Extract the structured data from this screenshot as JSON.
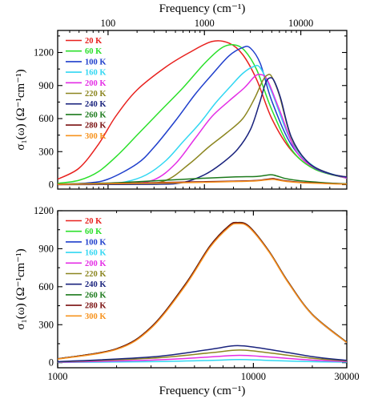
{
  "chart_data": [
    {
      "type": "line",
      "panel": "top",
      "xscale": "log",
      "xlim": [
        30,
        30000
      ],
      "ylim": [
        -40,
        1400
      ],
      "xaxis_position": "top",
      "xlabel_top": "Frequency (cm⁻¹)",
      "ylabel": "σ₁(ω)  (Ω⁻¹cm⁻¹)",
      "xticks": [
        100,
        1000,
        10000
      ],
      "xtick_labels": [
        "100",
        "1000",
        "10000"
      ],
      "yticks": [
        0,
        300,
        600,
        900,
        1200
      ],
      "ytick_labels": [
        "0",
        "300",
        "600",
        "900",
        "1200"
      ],
      "legend_position": "top-left",
      "series": [
        {
          "name": "20 K",
          "color": "#e8211e",
          "points": [
            [
              30,
              50
            ],
            [
              50,
              150
            ],
            [
              80,
              370
            ],
            [
              120,
              620
            ],
            [
              200,
              860
            ],
            [
              400,
              1070
            ],
            [
              700,
              1200
            ],
            [
              1200,
              1300
            ],
            [
              1800,
              1285
            ],
            [
              2500,
              1180
            ],
            [
              3500,
              950
            ],
            [
              5000,
              600
            ],
            [
              8000,
              310
            ],
            [
              14000,
              140
            ],
            [
              30000,
              60
            ]
          ]
        },
        {
          "name": "60 K",
          "color": "#2be02b",
          "points": [
            [
              30,
              12
            ],
            [
              50,
              40
            ],
            [
              80,
              120
            ],
            [
              130,
              280
            ],
            [
              200,
              450
            ],
            [
              350,
              670
            ],
            [
              600,
              880
            ],
            [
              1000,
              1100
            ],
            [
              1500,
              1240
            ],
            [
              2000,
              1270
            ],
            [
              2600,
              1220
            ],
            [
              3500,
              1040
            ],
            [
              5000,
              680
            ],
            [
              8000,
              320
            ],
            [
              14000,
              140
            ],
            [
              30000,
              60
            ]
          ]
        },
        {
          "name": "100 K",
          "color": "#1f3fcc",
          "points": [
            [
              30,
              4
            ],
            [
              60,
              15
            ],
            [
              100,
              50
            ],
            [
              200,
              190
            ],
            [
              300,
              340
            ],
            [
              500,
              580
            ],
            [
              800,
              820
            ],
            [
              1200,
              1000
            ],
            [
              1800,
              1170
            ],
            [
              2500,
              1245
            ],
            [
              3000,
              1240
            ],
            [
              3800,
              1100
            ],
            [
              5000,
              760
            ],
            [
              8000,
              360
            ],
            [
              14000,
              150
            ],
            [
              30000,
              60
            ]
          ]
        },
        {
          "name": "160 K",
          "color": "#31d7f2",
          "points": [
            [
              30,
              2
            ],
            [
              80,
              6
            ],
            [
              150,
              25
            ],
            [
              250,
              90
            ],
            [
              400,
              220
            ],
            [
              600,
              390
            ],
            [
              900,
              560
            ],
            [
              1300,
              740
            ],
            [
              1900,
              900
            ],
            [
              2500,
              1010
            ],
            [
              3200,
              1070
            ],
            [
              3800,
              1060
            ],
            [
              5000,
              840
            ],
            [
              8000,
              390
            ],
            [
              14000,
              160
            ],
            [
              30000,
              60
            ]
          ]
        },
        {
          "name": "200 K",
          "color": "#e42ee6",
          "points": [
            [
              30,
              1
            ],
            [
              150,
              8
            ],
            [
              300,
              45
            ],
            [
              500,
              190
            ],
            [
              800,
              420
            ],
            [
              1200,
              620
            ],
            [
              1800,
              760
            ],
            [
              2600,
              880
            ],
            [
              3300,
              980
            ],
            [
              3800,
              1000
            ],
            [
              4500,
              950
            ],
            [
              6000,
              680
            ],
            [
              9000,
              300
            ],
            [
              15000,
              140
            ],
            [
              30000,
              60
            ]
          ]
        },
        {
          "name": "220 K",
          "color": "#8c8620",
          "points": [
            [
              30,
              1
            ],
            [
              200,
              6
            ],
            [
              400,
              40
            ],
            [
              700,
              190
            ],
            [
              1100,
              340
            ],
            [
              1700,
              470
            ],
            [
              2500,
              600
            ],
            [
              3300,
              780
            ],
            [
              4000,
              940
            ],
            [
              4500,
              995
            ],
            [
              5000,
              980
            ],
            [
              6000,
              810
            ],
            [
              8000,
              420
            ],
            [
              12000,
              200
            ],
            [
              20000,
              100
            ],
            [
              30000,
              70
            ]
          ]
        },
        {
          "name": "240 K",
          "color": "#1a237e",
          "points": [
            [
              30,
              1
            ],
            [
              300,
              4
            ],
            [
              600,
              20
            ],
            [
              1000,
              90
            ],
            [
              1500,
              190
            ],
            [
              2200,
              320
            ],
            [
              3000,
              500
            ],
            [
              3700,
              730
            ],
            [
              4300,
              920
            ],
            [
              4800,
              970
            ],
            [
              5300,
              940
            ],
            [
              6200,
              780
            ],
            [
              8000,
              430
            ],
            [
              12000,
              200
            ],
            [
              20000,
              100
            ],
            [
              30000,
              70
            ]
          ]
        },
        {
          "name": "260 K",
          "color": "#1c7a1c",
          "points": [
            [
              30,
              5
            ],
            [
              100,
              15
            ],
            [
              300,
              35
            ],
            [
              800,
              55
            ],
            [
              2000,
              70
            ],
            [
              3500,
              75
            ],
            [
              4800,
              90
            ],
            [
              5500,
              82
            ],
            [
              7000,
              55
            ],
            [
              10000,
              35
            ],
            [
              20000,
              15
            ],
            [
              30000,
              8
            ]
          ]
        },
        {
          "name": "280 K",
          "color": "#7a1010",
          "points": [
            [
              30,
              4
            ],
            [
              100,
              10
            ],
            [
              300,
              18
            ],
            [
              800,
              25
            ],
            [
              2000,
              32
            ],
            [
              3500,
              38
            ],
            [
              5000,
              55
            ],
            [
              5600,
              50
            ],
            [
              7000,
              35
            ],
            [
              10000,
              22
            ],
            [
              20000,
              10
            ],
            [
              30000,
              6
            ]
          ]
        },
        {
          "name": "300 K",
          "color": "#f7931e",
          "points": [
            [
              30,
              3
            ],
            [
              100,
              8
            ],
            [
              300,
              14
            ],
            [
              800,
              20
            ],
            [
              2000,
              28
            ],
            [
              3500,
              35
            ],
            [
              5000,
              48
            ],
            [
              5600,
              44
            ],
            [
              7000,
              30
            ],
            [
              10000,
              18
            ],
            [
              20000,
              8
            ],
            [
              30000,
              5
            ]
          ]
        }
      ]
    },
    {
      "type": "line",
      "panel": "bottom",
      "xscale": "log",
      "xlim": [
        1000,
        30000
      ],
      "ylim": [
        -40,
        1200
      ],
      "xlabel": "Frequency (cm⁻¹)",
      "ylabel": "σ₁(ω)  (Ω⁻¹cm⁻¹)",
      "xticks": [
        1000,
        10000,
        30000
      ],
      "xtick_labels": [
        "1000",
        "10000",
        "30000"
      ],
      "yticks": [
        0,
        300,
        600,
        900,
        1200
      ],
      "ytick_labels": [
        "0",
        "300",
        "600",
        "900",
        "1200"
      ],
      "legend_position": "top-left",
      "series": [
        {
          "name": "20 K",
          "color": "#e8211e",
          "points": [
            [
              1000,
              30
            ],
            [
              2000,
              110
            ],
            [
              3000,
              280
            ],
            [
              4500,
              620
            ],
            [
              6000,
              920
            ],
            [
              7500,
              1080
            ],
            [
              8300,
              1105
            ],
            [
              9500,
              1075
            ],
            [
              12000,
              880
            ],
            [
              15000,
              640
            ],
            [
              20000,
              380
            ],
            [
              30000,
              160
            ]
          ]
        },
        {
          "name": "60 K",
          "color": "#2be02b",
          "points": [
            [
              1000,
              30
            ],
            [
              2000,
              110
            ],
            [
              3000,
              280
            ],
            [
              4500,
              620
            ],
            [
              6000,
              920
            ],
            [
              7500,
              1080
            ],
            [
              8300,
              1105
            ],
            [
              9500,
              1075
            ],
            [
              12000,
              880
            ],
            [
              15000,
              640
            ],
            [
              20000,
              380
            ],
            [
              30000,
              160
            ]
          ]
        },
        {
          "name": "100 K",
          "color": "#1f3fcc",
          "points": [
            [
              1000,
              30
            ],
            [
              2000,
              108
            ],
            [
              3000,
              278
            ],
            [
              4500,
              618
            ],
            [
              6000,
              918
            ],
            [
              7500,
              1078
            ],
            [
              8300,
              1103
            ],
            [
              9500,
              1073
            ],
            [
              12000,
              878
            ],
            [
              15000,
              638
            ],
            [
              20000,
              378
            ],
            [
              30000,
              158
            ]
          ]
        },
        {
          "name": "160 K",
          "color": "#31d7f2",
          "points": [
            [
              1000,
              2
            ],
            [
              3000,
              8
            ],
            [
              6000,
              18
            ],
            [
              8500,
              25
            ],
            [
              12000,
              18
            ],
            [
              20000,
              8
            ],
            [
              30000,
              4
            ]
          ]
        },
        {
          "name": "200 K",
          "color": "#e42ee6",
          "points": [
            [
              1000,
              4
            ],
            [
              3000,
              20
            ],
            [
              6000,
              45
            ],
            [
              8500,
              58
            ],
            [
              12000,
              45
            ],
            [
              20000,
              20
            ],
            [
              30000,
              9
            ]
          ]
        },
        {
          "name": "220 K",
          "color": "#8c8620",
          "points": [
            [
              1000,
              6
            ],
            [
              3000,
              35
            ],
            [
              6000,
              78
            ],
            [
              8500,
              100
            ],
            [
              12000,
              78
            ],
            [
              20000,
              35
            ],
            [
              30000,
              14
            ]
          ]
        },
        {
          "name": "240 K",
          "color": "#1a237e",
          "points": [
            [
              1000,
              8
            ],
            [
              3000,
              45
            ],
            [
              6000,
              105
            ],
            [
              8300,
              135
            ],
            [
              12000,
              105
            ],
            [
              20000,
              48
            ],
            [
              30000,
              18
            ]
          ]
        },
        {
          "name": "260 K",
          "color": "#1c7a1c",
          "points": [
            [
              1000,
              30
            ],
            [
              2000,
              110
            ],
            [
              3000,
              280
            ],
            [
              4500,
              622
            ],
            [
              6000,
              922
            ],
            [
              7500,
              1082
            ],
            [
              8300,
              1107
            ],
            [
              9500,
              1077
            ],
            [
              12000,
              882
            ],
            [
              15000,
              642
            ],
            [
              20000,
              382
            ],
            [
              30000,
              162
            ]
          ]
        },
        {
          "name": "280 K",
          "color": "#7a1010",
          "points": [
            [
              1000,
              30
            ],
            [
              2000,
              110
            ],
            [
              3000,
              280
            ],
            [
              4500,
              621
            ],
            [
              6000,
              921
            ],
            [
              7500,
              1081
            ],
            [
              8300,
              1106
            ],
            [
              9500,
              1076
            ],
            [
              12000,
              881
            ],
            [
              15000,
              641
            ],
            [
              20000,
              381
            ],
            [
              30000,
              161
            ]
          ]
        },
        {
          "name": "300 K",
          "color": "#f7931e",
          "points": [
            [
              1000,
              28
            ],
            [
              2000,
              105
            ],
            [
              3000,
              272
            ],
            [
              4500,
              610
            ],
            [
              6000,
              910
            ],
            [
              7500,
              1070
            ],
            [
              8300,
              1098
            ],
            [
              9500,
              1068
            ],
            [
              12000,
              875
            ],
            [
              15000,
              636
            ],
            [
              20000,
              378
            ],
            [
              30000,
              158
            ]
          ]
        }
      ]
    }
  ]
}
